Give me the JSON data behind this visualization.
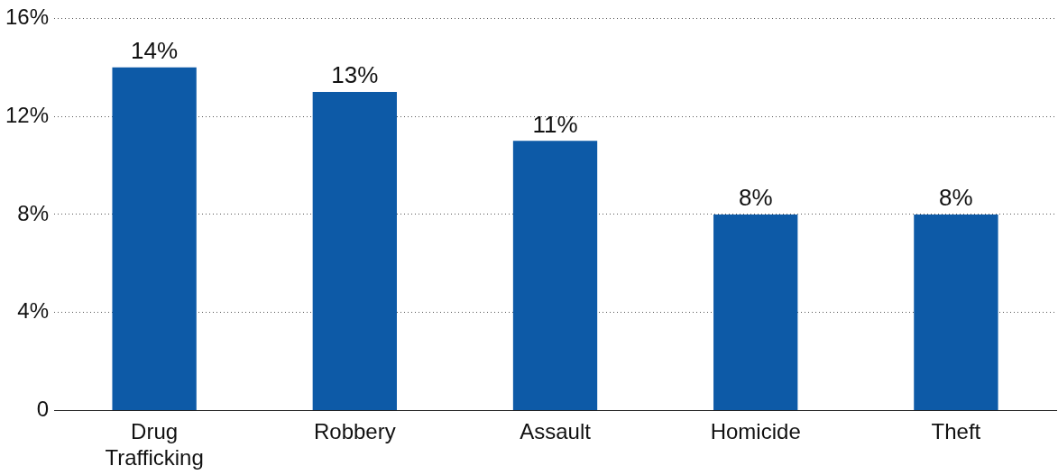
{
  "chart_data": {
    "type": "bar",
    "categories": [
      "Drug Trafficking",
      "Robbery",
      "Assault",
      "Homicide",
      "Theft"
    ],
    "values": [
      14,
      13,
      11,
      8,
      8
    ],
    "color": "#0d5aa7",
    "value_labels": [
      "14%",
      "13%",
      "11%",
      "8%",
      "8%"
    ],
    "ylim": [
      0,
      16
    ],
    "yticks": [
      0,
      {
        "value": 4,
        "label": "4%"
      },
      {
        "value": 8,
        "label": "8%"
      },
      {
        "value": 12,
        "label": "12%"
      },
      {
        "value": 16,
        "label": "16%"
      }
    ],
    "grid": "y",
    "legend": false
  }
}
